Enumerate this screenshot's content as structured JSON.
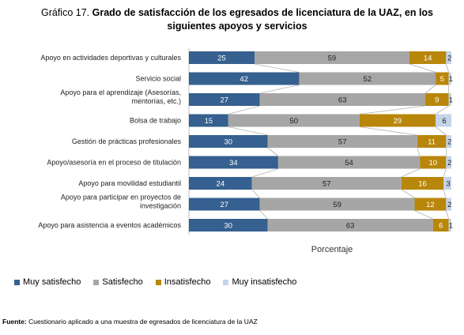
{
  "title": {
    "prefix": "Gráfico 17.",
    "main": "Grado de satisfacción de los egresados de licenciatura de la UAZ, en los siguientes apoyos y servicios"
  },
  "source": {
    "label": "Fuente:",
    "text": "Cuestionario aplicado a una muestra de egresados de licenciatura de la UAZ"
  },
  "colors": {
    "muy_satisfecho": "#35608f",
    "satisfecho": "#a6a6a6",
    "insatisfecho": "#b8860b",
    "muy_insatisfecho": "#c3d3e8"
  },
  "chart_data": {
    "type": "bar",
    "orientation": "horizontal",
    "stacked": true,
    "xlabel": "Porcentaje",
    "legend_position": "bottom",
    "categories": [
      "Apoyo en actividades deportivas y culturales",
      "Servicio social",
      "Apoyo para el aprendizaje (Asesorías, mentorías, etc.)",
      "Bolsa de trabajo",
      "Gestión de prácticas profesionales",
      "Apoyo/asesoría en el proceso de titulación",
      "Apoyo para movilidad estudiantil",
      "Apoyo para participar en proyectos de investigación",
      "Apoyo para asistencia a eventos académicos"
    ],
    "series": [
      {
        "name": "Muy satisfecho",
        "values": [
          25,
          42,
          27,
          15,
          30,
          34,
          24,
          27,
          30
        ]
      },
      {
        "name": "Satisfecho",
        "values": [
          59,
          52,
          63,
          50,
          57,
          54,
          57,
          59,
          63
        ]
      },
      {
        "name": "Insatisfecho",
        "values": [
          14,
          5,
          9,
          29,
          11,
          10,
          16,
          12,
          6
        ]
      },
      {
        "name": "Muy insatisfecho",
        "values": [
          2,
          1,
          1,
          6,
          2,
          2,
          3,
          2,
          1
        ]
      }
    ]
  }
}
